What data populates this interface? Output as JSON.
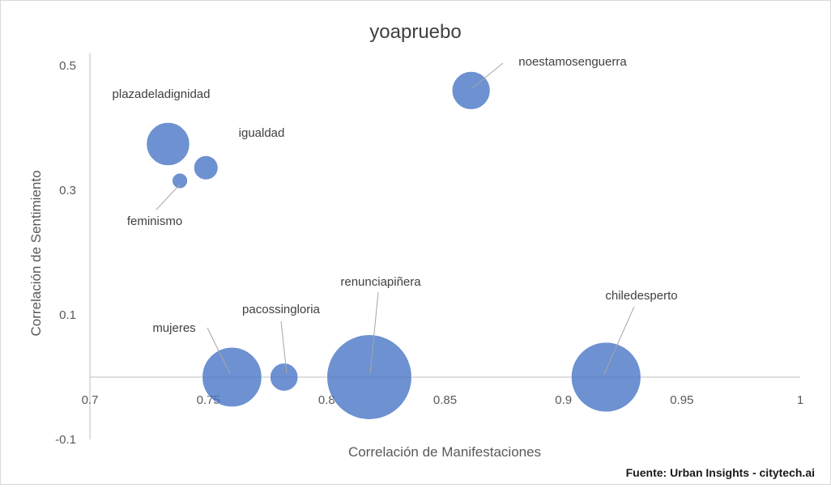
{
  "chart_data": {
    "type": "bubble",
    "title": "yoapruebo",
    "xlabel": "Correlación de Manifestaciones",
    "ylabel": "Correlación de Sentimiento",
    "xlim": [
      0.7,
      1.0
    ],
    "ylim": [
      -0.1,
      0.5
    ],
    "xticks": [
      "0.7",
      "0.75",
      "0.8",
      "0.85",
      "0.9",
      "0.95",
      "1"
    ],
    "yticks": [
      "0.5",
      "0.3",
      "0.1",
      "-0.1"
    ],
    "bubble_color": "#4472c4",
    "points": [
      {
        "label": "plazadeladignidad",
        "x": 0.733,
        "y": 0.374,
        "size": 34
      },
      {
        "label": "igualdad",
        "x": 0.749,
        "y": 0.336,
        "size": 19
      },
      {
        "label": "feminismo",
        "x": 0.738,
        "y": 0.315,
        "size": 12
      },
      {
        "label": "noestamosenguerra",
        "x": 0.861,
        "y": 0.46,
        "size": 30
      },
      {
        "label": "mujeres",
        "x": 0.76,
        "y": 0.0,
        "size": 47
      },
      {
        "label": "pacossingloria",
        "x": 0.782,
        "y": 0.0,
        "size": 22
      },
      {
        "label": "renunciapiñera",
        "x": 0.818,
        "y": 0.0,
        "size": 67
      },
      {
        "label": "chiledesperto",
        "x": 0.918,
        "y": 0.0,
        "size": 55
      }
    ],
    "source": "Fuente: Urban Insights - citytech.ai"
  }
}
